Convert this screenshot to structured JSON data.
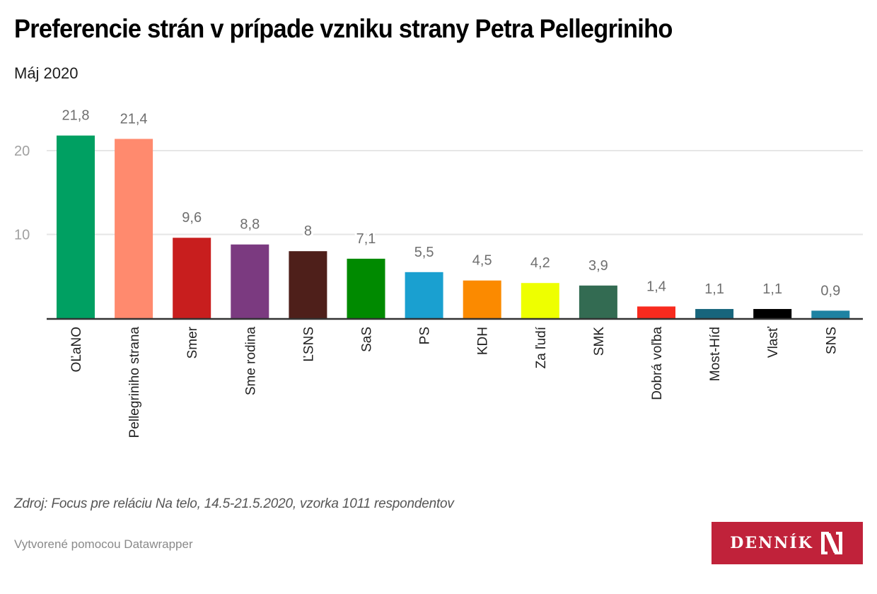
{
  "header": {
    "title": "Preferencie strán v prípade vzniku strany Petra Pellegriniho",
    "subtitle": "Máj 2020"
  },
  "footer": {
    "source": "Zdroj: Focus pre reláciu Na telo, 14.5-21.5.2020, vzorka 1011 respondentov",
    "credit": "Vytvorené pomocou Datawrapper",
    "logo_text": "DENNÍK",
    "logo_mark": "N"
  },
  "colors": {
    "brand": "#c0223a",
    "gridline": "#e6e6e6",
    "baseline": "#333333"
  },
  "chart_data": {
    "type": "bar",
    "title": "Preferencie strán v prípade vzniku strany Petra Pellegriniho",
    "subtitle": "Máj 2020",
    "xlabel": "",
    "ylabel": "",
    "ylim": [
      0,
      24
    ],
    "yticks": [
      10,
      20
    ],
    "grid": true,
    "decimal_separator": ",",
    "categories": [
      "OĽaNO",
      "Pellegriniho strana",
      "Smer",
      "Sme rodina",
      "ĽSNS",
      "SaS",
      "PS",
      "KDH",
      "Za ľudí",
      "SMK",
      "Dobrá voľba",
      "Most-Híd",
      "Vlasť",
      "SNS"
    ],
    "values": [
      21.8,
      21.4,
      9.6,
      8.8,
      8,
      7.1,
      5.5,
      4.5,
      4.2,
      3.9,
      1.4,
      1.1,
      1.1,
      0.9
    ],
    "value_labels": [
      "21,8",
      "21,4",
      "9,6",
      "8,8",
      "8",
      "7,1",
      "5,5",
      "4,5",
      "4,2",
      "3,9",
      "1,4",
      "1,1",
      "1,1",
      "0,9"
    ],
    "bar_colors": [
      "#00a062",
      "#ff8a6e",
      "#c81e1e",
      "#7b3a80",
      "#4e1f1a",
      "#008a00",
      "#1aa0d0",
      "#fb8a00",
      "#eeff00",
      "#336b52",
      "#f82a1e",
      "#17657c",
      "#000000",
      "#1e82a2"
    ]
  }
}
